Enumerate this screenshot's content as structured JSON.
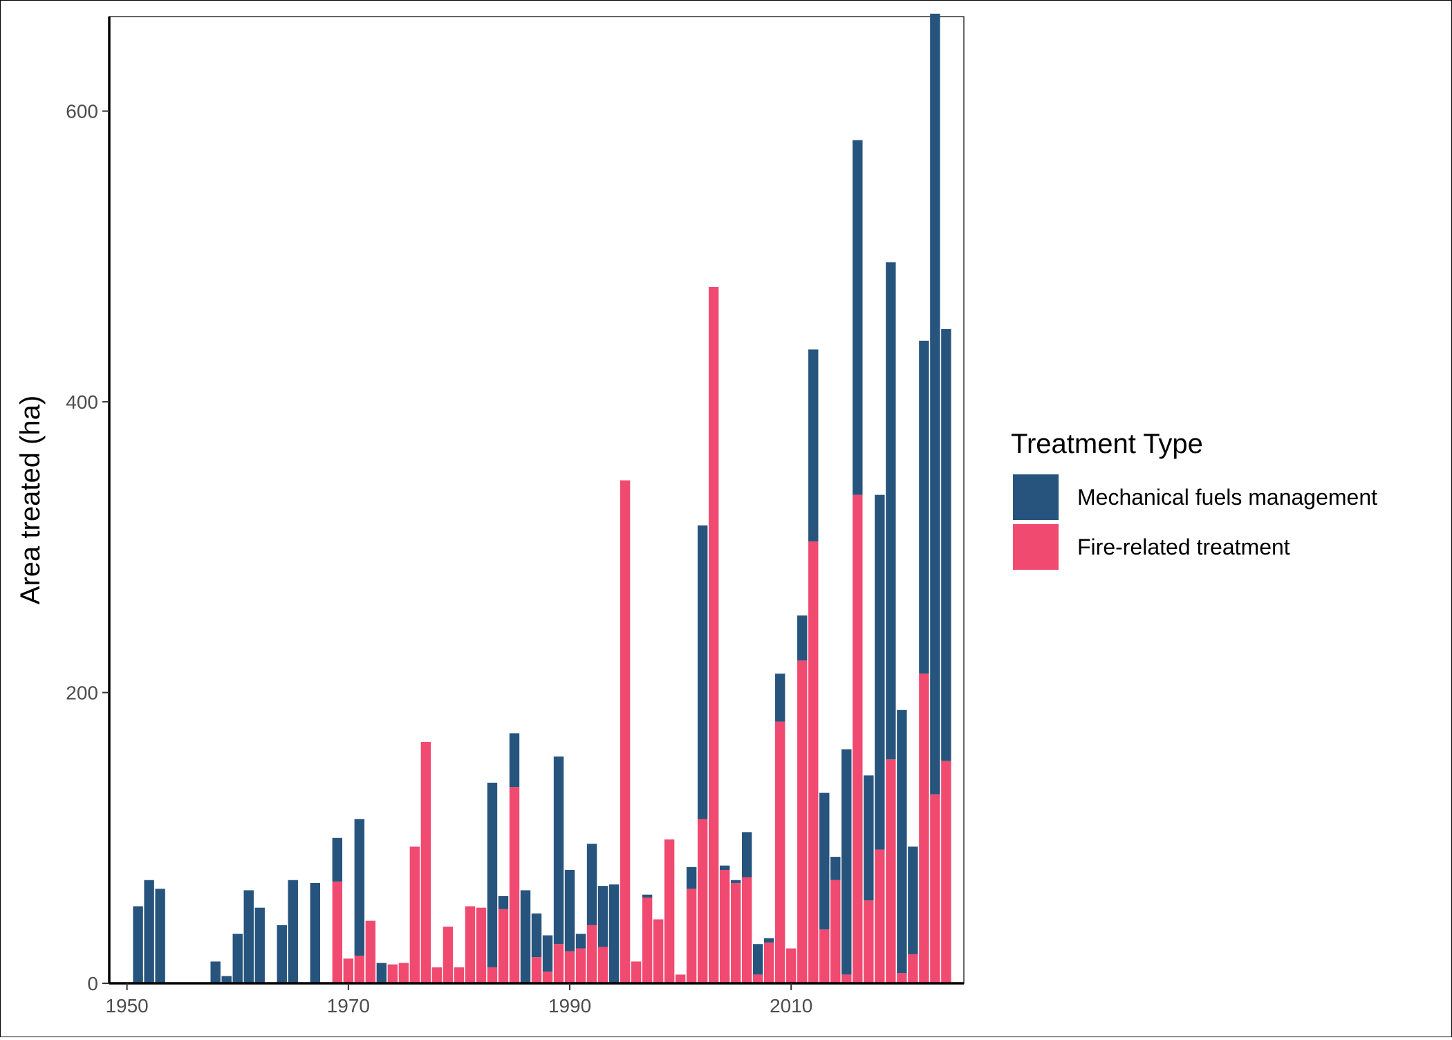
{
  "chart_data": {
    "type": "bar",
    "stacked": true,
    "title": "",
    "xlabel": "",
    "ylabel": "Area treated (ha)",
    "xlim": [
      1948.4,
      2025.6
    ],
    "ylim": [
      0,
      665
    ],
    "x_ticks": [
      1950,
      1970,
      1990,
      2010
    ],
    "y_ticks": [
      0,
      200,
      400,
      600
    ],
    "grid": false,
    "legend": {
      "title": "Treatment Type",
      "position": "right",
      "entries": [
        "Mechanical fuels management",
        "Fire-related treatment"
      ]
    },
    "colors": {
      "Mechanical fuels management": "#27547d",
      "Fire-related treatment": "#f14a71"
    },
    "x": [
      1951,
      1952,
      1953,
      1958,
      1959,
      1960,
      1961,
      1962,
      1964,
      1965,
      1967,
      1969,
      1970,
      1971,
      1972,
      1973,
      1974,
      1975,
      1976,
      1977,
      1978,
      1979,
      1980,
      1981,
      1982,
      1983,
      1984,
      1985,
      1986,
      1987,
      1988,
      1989,
      1990,
      1991,
      1992,
      1993,
      1994,
      1995,
      1996,
      1997,
      1998,
      1999,
      2000,
      2001,
      2002,
      2003,
      2004,
      2005,
      2006,
      2007,
      2008,
      2009,
      2010,
      2011,
      2012,
      2013,
      2014,
      2015,
      2016,
      2017,
      2018,
      2019,
      2020,
      2021,
      2022,
      2023,
      2024
    ],
    "series": [
      {
        "name": "Fire-related treatment",
        "values": [
          0,
          0,
          0,
          0,
          0,
          0,
          0,
          0,
          0,
          0,
          0,
          70,
          17,
          19,
          43,
          0,
          13,
          14,
          94,
          166,
          11,
          39,
          11,
          53,
          52,
          11,
          51,
          135,
          0,
          18,
          8,
          27,
          22,
          24,
          40,
          25,
          0,
          346,
          15,
          59,
          44,
          99,
          6,
          65,
          113,
          479,
          78,
          69,
          73,
          6,
          28,
          180,
          24,
          222,
          304,
          37,
          71,
          6,
          336,
          57,
          92,
          154,
          7,
          20,
          213,
          130,
          153
        ]
      },
      {
        "name": "Mechanical fuels management",
        "values": [
          53,
          71,
          65,
          15,
          5,
          34,
          64,
          52,
          40,
          71,
          69,
          30,
          0,
          94,
          0,
          14,
          0,
          0,
          0,
          0,
          0,
          0,
          0,
          0,
          0,
          127,
          9,
          37,
          64,
          30,
          25,
          129,
          56,
          10,
          56,
          42,
          68,
          0,
          0,
          2,
          0,
          0,
          0,
          15,
          202,
          0,
          3,
          2,
          31,
          21,
          3,
          33,
          0,
          31,
          132,
          94,
          16,
          155,
          244,
          86,
          244,
          342,
          181,
          74,
          229,
          537,
          297
        ]
      }
    ]
  }
}
